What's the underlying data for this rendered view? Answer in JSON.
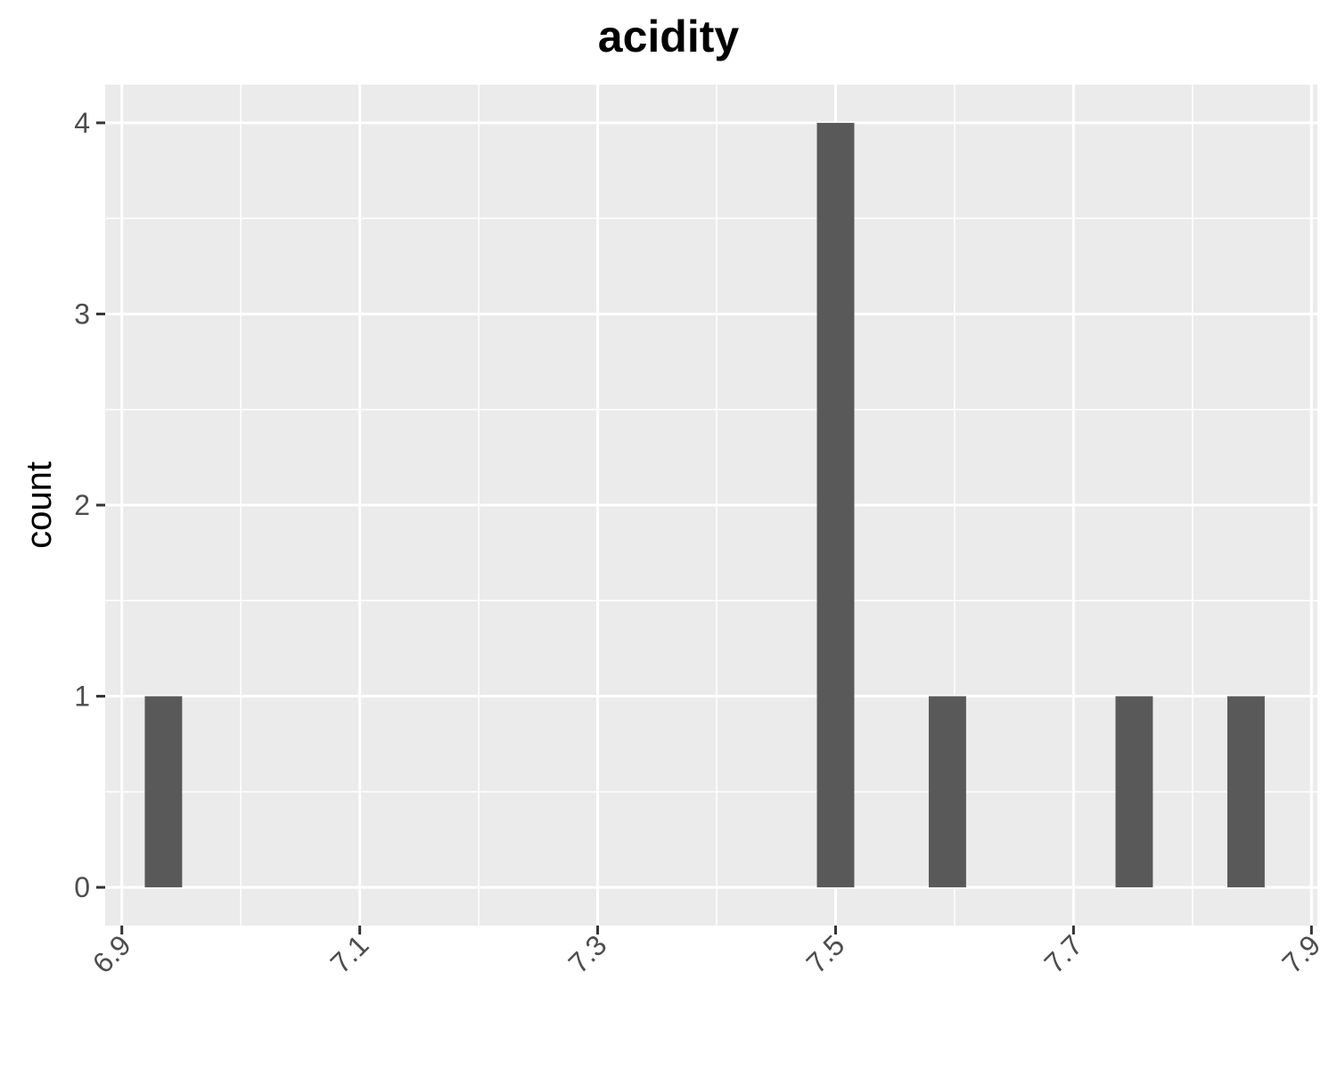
{
  "chart_data": {
    "type": "bar",
    "title": "acidity",
    "xlabel": "",
    "ylabel": "count",
    "xlim": [
      6.886,
      7.905
    ],
    "ylim": [
      -0.2,
      4.2
    ],
    "x_ticks": [
      "6.9",
      "7.1",
      "7.3",
      "7.5",
      "7.7",
      "7.9"
    ],
    "x_tick_values": [
      6.9,
      7.1,
      7.3,
      7.5,
      7.7,
      7.9
    ],
    "y_ticks": [
      "0",
      "1",
      "2",
      "3",
      "4"
    ],
    "y_tick_values": [
      0,
      1,
      2,
      3,
      4
    ],
    "bin_width": 0.0314,
    "bins": [
      {
        "x": 6.935,
        "count": 1
      },
      {
        "x": 7.5,
        "count": 4
      },
      {
        "x": 7.594,
        "count": 1
      },
      {
        "x": 7.751,
        "count": 1
      },
      {
        "x": 7.845,
        "count": 1
      }
    ],
    "grid": true,
    "colors": {
      "panel": "#ebebeb",
      "grid": "#ffffff",
      "bar": "#595959",
      "tick": "#333333"
    }
  }
}
